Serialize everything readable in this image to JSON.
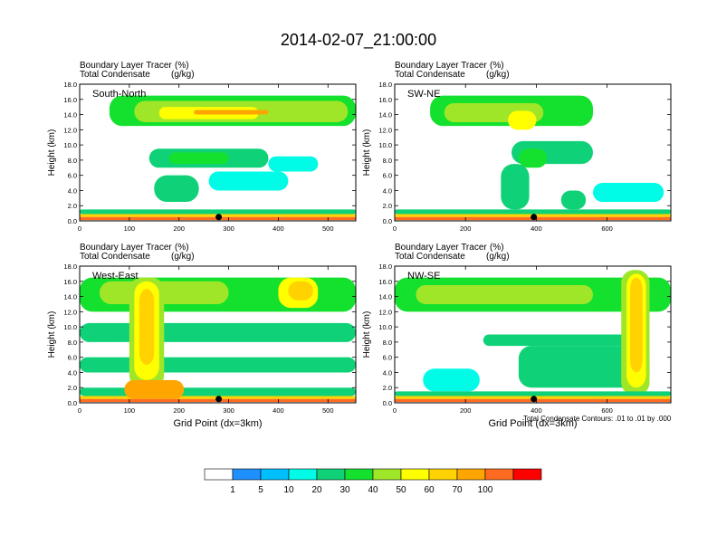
{
  "title": "2014-02-07_21:00:00",
  "colors": {
    "levels": [
      "#ffffff",
      "#1e8fff",
      "#00bfff",
      "#00fbe6",
      "#0fd278",
      "#14e12d",
      "#a0e628",
      "#ffff00",
      "#ffd200",
      "#ffa500",
      "#ff6b20",
      "#ff0000"
    ],
    "contour": "#000000",
    "marker": "#000000"
  },
  "colorbar": {
    "labels": [
      "1",
      "5",
      "10",
      "20",
      "30",
      "40",
      "50",
      "60",
      "70",
      "100"
    ]
  },
  "note": "Total Condensate Contours: .01 to .01 by .000",
  "chart_data": [
    {
      "type": "heatmap",
      "panel_label": "South-North",
      "subtitle_left": [
        "Boundary Layer Tracer",
        "Total Condensate"
      ],
      "subtitle_units": [
        "(%)",
        "(g/kg)"
      ],
      "ylabel": "Height (km)",
      "xlabel": "",
      "yticks": [
        "0.0",
        "2.0",
        "4.0",
        "6.0",
        "8.0",
        "10.0",
        "12.0",
        "14.0",
        "16.0",
        "18.0"
      ],
      "xticks": [
        "0",
        "100",
        "200",
        "300",
        "400",
        "500"
      ],
      "xlim": [
        0,
        556
      ],
      "ylim": [
        0,
        18
      ],
      "marker_x": 280
    },
    {
      "type": "heatmap",
      "panel_label": "SW-NE",
      "subtitle_left": [
        "Boundary Layer Tracer",
        "Total Condensate"
      ],
      "subtitle_units": [
        "(%)",
        "(g/kg)"
      ],
      "ylabel": "Height (km)",
      "xlabel": "",
      "yticks": [
        "0.0",
        "2.0",
        "4.0",
        "6.0",
        "8.0",
        "10.0",
        "12.0",
        "14.0",
        "16.0",
        "18.0"
      ],
      "xticks": [
        "0",
        "200",
        "400",
        "600"
      ],
      "xlim": [
        0,
        780
      ],
      "ylim": [
        0,
        18
      ],
      "marker_x": 393
    },
    {
      "type": "heatmap",
      "panel_label": "West-East",
      "subtitle_left": [
        "Boundary Layer Tracer",
        "Total Condensate"
      ],
      "subtitle_units": [
        "(%)",
        "(g/kg)"
      ],
      "ylabel": "Height (km)",
      "xlabel": "Grid Point (dx=3km)",
      "yticks": [
        "0.0",
        "2.0",
        "4.0",
        "6.0",
        "8.0",
        "10.0",
        "12.0",
        "14.0",
        "16.0",
        "18.0"
      ],
      "xticks": [
        "0",
        "100",
        "200",
        "300",
        "400",
        "500"
      ],
      "xlim": [
        0,
        556
      ],
      "ylim": [
        0,
        18
      ],
      "marker_x": 280
    },
    {
      "type": "heatmap",
      "panel_label": "NW-SE",
      "subtitle_left": [
        "Boundary Layer Tracer",
        "Total Condensate"
      ],
      "subtitle_units": [
        "(%)",
        "(g/kg)"
      ],
      "ylabel": "Height (km)",
      "xlabel": "Grid Point (dx=3km)",
      "yticks": [
        "0.0",
        "2.0",
        "4.0",
        "6.0",
        "8.0",
        "10.0",
        "12.0",
        "14.0",
        "16.0",
        "18.0"
      ],
      "xticks": [
        "0",
        "200",
        "400",
        "600"
      ],
      "xlim": [
        0,
        780
      ],
      "ylim": [
        0,
        18
      ],
      "marker_x": 393
    }
  ]
}
